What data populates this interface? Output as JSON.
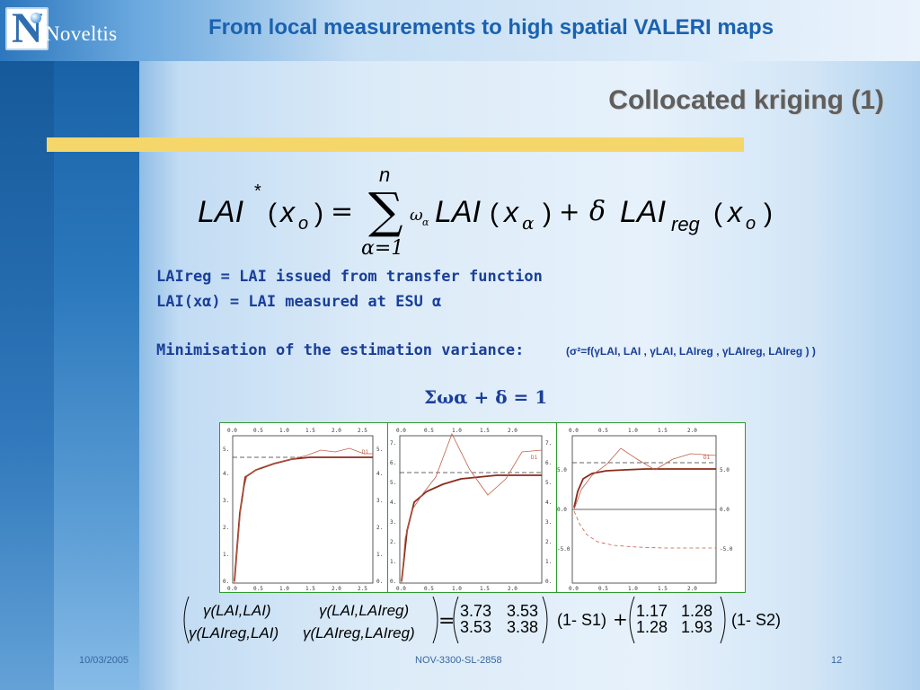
{
  "header": {
    "logo_text": "Noveltis",
    "title": "From local measurements to high spatial VALERI maps",
    "subtitle": "Collocated kriging (1)"
  },
  "formula": {
    "lhs": "LAI",
    "star": "*",
    "x0": "x",
    "sub_o": "o",
    "sum_top": "n",
    "sum_bottom": "α=1",
    "term1": "LAI",
    "term2": "LAI",
    "reg": "reg",
    "delta": "δ",
    "omega": "ω",
    "alpha": "α",
    "eq": "=",
    "plus": "+"
  },
  "definitions": {
    "line1": "LAIreg   = LAI issued from transfer function",
    "line2": "LAI(xα) = LAI measured at ESU α",
    "minimisation_label": "Minimisation of the estimation variance:",
    "minimisation_formula": "(σ²=f(γLAI, LAI , γLAI, LAIreg , γLAIreg, LAIreg ) )"
  },
  "constraint": "Σωα + δ = 1",
  "plots": [
    {
      "x_ticks": [
        "0.0",
        "0.5",
        "1.0",
        "1.5",
        "2.0",
        "2.5"
      ],
      "y_ticks_left": [
        "0.",
        "1.",
        "2.",
        "3.",
        "4.",
        "5."
      ],
      "y_ticks_right": [
        "0.",
        "1.",
        "2.",
        "3.",
        "4.",
        "5."
      ],
      "series_label": "D1"
    },
    {
      "x_ticks": [
        "0.0",
        "0.5",
        "1.0",
        "1.5",
        "2.0"
      ],
      "y_ticks_left": [
        "0.",
        "1.",
        "2.",
        "3.",
        "4.",
        "5.",
        "6.",
        "7."
      ],
      "y_ticks_right": [
        "0.",
        "1.",
        "2.",
        "3.",
        "4.",
        "5.",
        "6.",
        "7."
      ],
      "series_label": "D1"
    },
    {
      "x_ticks": [
        "0.0",
        "0.5",
        "1.0",
        "1.5",
        "2.0"
      ],
      "y_ticks_left": [
        "-5.0",
        "0.0",
        "5.0"
      ],
      "y_ticks_right": [
        "-5.0",
        "0.0",
        "5.0"
      ],
      "series_label": "D1"
    }
  ],
  "matrix": {
    "gamma_row1_a": "γ(LAI,LAI)",
    "gamma_row1_b": "γ(LAI,LAIreg)",
    "gamma_row2_a": "γ(LAIreg,LAI)",
    "gamma_row2_b": "γ(LAIreg,LAIreg)",
    "m1": [
      [
        "3.73",
        "3.53"
      ],
      [
        "3.53",
        "3.38"
      ]
    ],
    "factor1": "(1- S1)",
    "m2": [
      [
        "1.17",
        "1.28"
      ],
      [
        "1.28",
        "1.93"
      ]
    ],
    "factor2": "(1- S2)"
  },
  "footer": {
    "date": "10/03/2005",
    "doc_id": "NOV-3300-SL-2858",
    "page": "12"
  }
}
